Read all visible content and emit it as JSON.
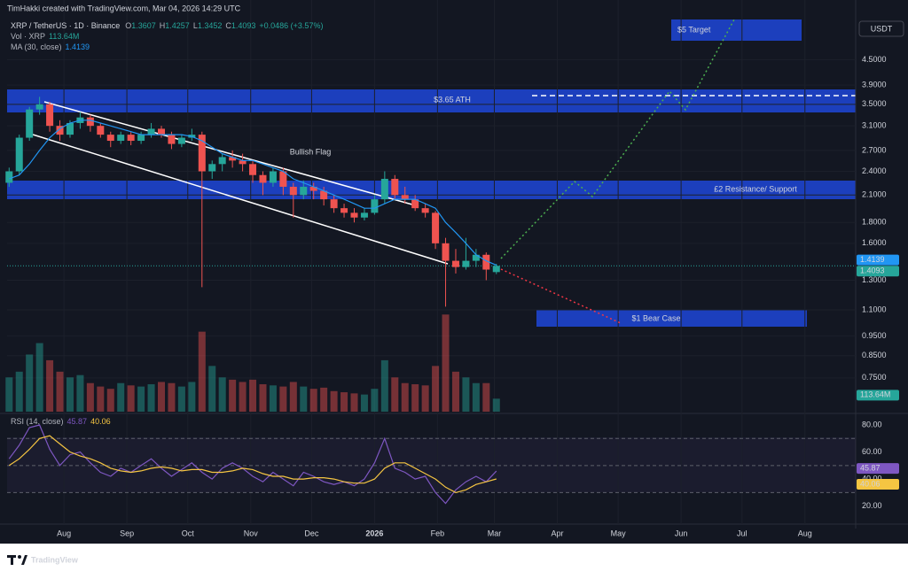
{
  "header": "TimHakki created with TradingView.com, Mar 04, 2026 14:29 UTC",
  "chart_data": {
    "type": "candlestick",
    "symbol": "XRP / TetherUS · 1D · Binance",
    "ohlc_labels": [
      "O",
      "H",
      "L",
      "C"
    ],
    "change": "+0.0486 (+3.57%)",
    "currency": "USDT",
    "log_scale": true,
    "grid": true,
    "up_color": "#26a69a",
    "down_color": "#ef5350",
    "xlim": [
      -28,
      390
    ],
    "xticks": [
      {
        "value": 0,
        "label": "Aug"
      },
      {
        "value": 31,
        "label": "Sep"
      },
      {
        "value": 61,
        "label": "Oct"
      },
      {
        "value": 92,
        "label": "Nov"
      },
      {
        "value": 122,
        "label": "Dec"
      },
      {
        "value": 153,
        "label": "2026"
      },
      {
        "value": 184,
        "label": "Feb"
      },
      {
        "value": 212,
        "label": "Mar"
      },
      {
        "value": 243,
        "label": "Apr"
      },
      {
        "value": 273,
        "label": "May"
      },
      {
        "value": 304,
        "label": "Jun"
      },
      {
        "value": 334,
        "label": "Jul"
      },
      {
        "value": 365,
        "label": "Aug"
      }
    ],
    "ylim": [
      0.62,
      5.7
    ],
    "yticks": [
      {
        "value": 0.75,
        "label": "0.7500"
      },
      {
        "value": 0.85,
        "label": "0.8500"
      },
      {
        "value": 0.95,
        "label": "0.9500"
      },
      {
        "value": 1.1,
        "label": "1.1000"
      },
      {
        "value": 1.3,
        "label": "1.3000"
      },
      {
        "value": 1.6,
        "label": "1.6000"
      },
      {
        "value": 1.8,
        "label": "1.8000"
      },
      {
        "value": 2.1,
        "label": "2.1000"
      },
      {
        "value": 2.4,
        "label": "2.4000"
      },
      {
        "value": 2.7,
        "label": "2.7000"
      },
      {
        "value": 3.1,
        "label": "3.1000"
      },
      {
        "value": 3.5,
        "label": "3.5000"
      },
      {
        "value": 3.9,
        "label": "3.9000"
      },
      {
        "value": 4.5,
        "label": "4.5000"
      }
    ],
    "x": [
      -27,
      -22,
      -17,
      -12,
      -7,
      -2,
      3,
      8,
      13,
      18,
      23,
      28,
      33,
      38,
      43,
      48,
      53,
      58,
      63,
      68,
      73,
      78,
      83,
      88,
      93,
      98,
      103,
      108,
      113,
      118,
      123,
      128,
      133,
      138,
      143,
      148,
      153,
      158,
      163,
      168,
      173,
      178,
      183,
      188,
      193,
      198,
      203,
      208,
      213
    ],
    "candles": [
      [
        2.25,
        2.45,
        2.2,
        2.4
      ],
      [
        2.4,
        2.95,
        2.35,
        2.9
      ],
      [
        2.9,
        3.45,
        2.85,
        3.4
      ],
      [
        3.4,
        3.65,
        3.3,
        3.5
      ],
      [
        3.5,
        3.55,
        3.0,
        3.1
      ],
      [
        3.1,
        3.2,
        2.85,
        2.95
      ],
      [
        2.95,
        3.2,
        2.9,
        3.15
      ],
      [
        3.15,
        3.35,
        3.05,
        3.25
      ],
      [
        3.25,
        3.3,
        3.0,
        3.1
      ],
      [
        3.1,
        3.15,
        2.9,
        2.95
      ],
      [
        2.95,
        3.0,
        2.75,
        2.85
      ],
      [
        2.85,
        3.0,
        2.8,
        2.95
      ],
      [
        2.95,
        3.0,
        2.78,
        2.85
      ],
      [
        2.85,
        3.0,
        2.8,
        2.95
      ],
      [
        2.95,
        3.15,
        2.9,
        3.05
      ],
      [
        3.05,
        3.1,
        2.9,
        2.95
      ],
      [
        2.95,
        3.0,
        2.72,
        2.8
      ],
      [
        2.8,
        2.95,
        2.75,
        2.9
      ],
      [
        2.9,
        3.05,
        2.85,
        2.95
      ],
      [
        2.95,
        3.0,
        1.25,
        2.4
      ],
      [
        2.4,
        2.55,
        2.3,
        2.5
      ],
      [
        2.5,
        2.65,
        2.4,
        2.6
      ],
      [
        2.6,
        2.7,
        2.45,
        2.55
      ],
      [
        2.55,
        2.65,
        2.4,
        2.5
      ],
      [
        2.5,
        2.55,
        2.25,
        2.35
      ],
      [
        2.35,
        2.4,
        2.1,
        2.25
      ],
      [
        2.25,
        2.45,
        2.2,
        2.4
      ],
      [
        2.4,
        2.45,
        2.1,
        2.2
      ],
      [
        2.2,
        2.25,
        1.85,
        2.1
      ],
      [
        2.1,
        2.28,
        2.05,
        2.2
      ],
      [
        2.2,
        2.25,
        2.05,
        2.15
      ],
      [
        2.15,
        2.2,
        1.98,
        2.05
      ],
      [
        2.05,
        2.1,
        1.9,
        1.95
      ],
      [
        1.95,
        2.0,
        1.85,
        1.9
      ],
      [
        1.9,
        1.95,
        1.8,
        1.85
      ],
      [
        1.85,
        1.95,
        1.82,
        1.9
      ],
      [
        1.9,
        2.1,
        1.88,
        2.05
      ],
      [
        2.05,
        2.4,
        2.0,
        2.3
      ],
      [
        2.3,
        2.35,
        2.05,
        2.1
      ],
      [
        2.1,
        2.2,
        2.0,
        2.05
      ],
      [
        2.05,
        2.1,
        1.92,
        1.95
      ],
      [
        1.95,
        2.0,
        1.85,
        1.9
      ],
      [
        1.9,
        1.92,
        1.55,
        1.6
      ],
      [
        1.6,
        1.65,
        1.12,
        1.45
      ],
      [
        1.45,
        1.55,
        1.35,
        1.4
      ],
      [
        1.4,
        1.65,
        1.38,
        1.45
      ],
      [
        1.45,
        1.55,
        1.4,
        1.5
      ],
      [
        1.5,
        1.52,
        1.3,
        1.38
      ],
      [
        1.3607,
        1.4257,
        1.3452,
        1.4093
      ]
    ],
    "ma": {
      "name": "MA (30, close)",
      "color": "#2196f3",
      "values": [
        2.3,
        2.35,
        2.5,
        2.7,
        2.9,
        3.05,
        3.15,
        3.2,
        3.2,
        3.15,
        3.1,
        3.05,
        3.0,
        2.95,
        2.95,
        2.95,
        2.95,
        2.95,
        2.92,
        2.85,
        2.75,
        2.65,
        2.6,
        2.55,
        2.55,
        2.5,
        2.45,
        2.4,
        2.3,
        2.25,
        2.2,
        2.15,
        2.1,
        2.05,
        2.0,
        1.95,
        1.95,
        2.0,
        2.05,
        2.05,
        2.05,
        2.0,
        1.95,
        1.8,
        1.7,
        1.6,
        1.5,
        1.45,
        1.4139
      ]
    },
    "volume": {
      "name": "Vol · XRP",
      "label": "113.64M",
      "ylim": [
        0,
        1100
      ],
      "values": [
        300,
        350,
        500,
        600,
        450,
        350,
        300,
        320,
        250,
        220,
        200,
        250,
        230,
        220,
        240,
        260,
        250,
        220,
        260,
        700,
        400,
        300,
        280,
        260,
        280,
        240,
        230,
        220,
        260,
        220,
        200,
        210,
        180,
        170,
        160,
        150,
        200,
        450,
        300,
        250,
        240,
        230,
        400,
        850,
        350,
        300,
        250,
        250,
        113.64
      ]
    },
    "rsi": {
      "name": "RSI (14, close)",
      "color": "#7e57c2",
      "ma_color": "#f5c542",
      "ylim": [
        8,
        88.5
      ],
      "yticks": [
        {
          "value": 20,
          "label": "20.00"
        },
        {
          "value": 40,
          "label": "40.00"
        },
        {
          "value": 60,
          "label": "60.00"
        },
        {
          "value": 80,
          "label": "80.00"
        }
      ],
      "levels": [
        70,
        50,
        30
      ],
      "values": [
        55,
        65,
        78,
        80,
        62,
        50,
        58,
        60,
        52,
        45,
        42,
        48,
        45,
        50,
        55,
        48,
        42,
        47,
        52,
        45,
        40,
        48,
        52,
        48,
        42,
        38,
        45,
        40,
        35,
        45,
        42,
        38,
        36,
        38,
        35,
        40,
        52,
        70,
        48,
        45,
        40,
        42,
        30,
        22,
        32,
        38,
        42,
        38,
        45.87
      ],
      "ma_values": [
        50,
        55,
        62,
        70,
        72,
        66,
        60,
        57,
        55,
        52,
        48,
        46,
        45,
        46,
        48,
        49,
        48,
        46,
        47,
        47,
        45,
        45,
        46,
        48,
        47,
        44,
        42,
        42,
        40,
        40,
        41,
        41,
        40,
        38,
        37,
        37,
        40,
        48,
        52,
        52,
        48,
        44,
        40,
        34,
        30,
        32,
        36,
        38,
        40.06
      ]
    },
    "annotations": [
      "$5 Target",
      "$3.65 ATH",
      "Bullish Flag",
      "£2 Resistance/ Support",
      "$1 Bear Case"
    ],
    "brand": "TradingView"
  }
}
